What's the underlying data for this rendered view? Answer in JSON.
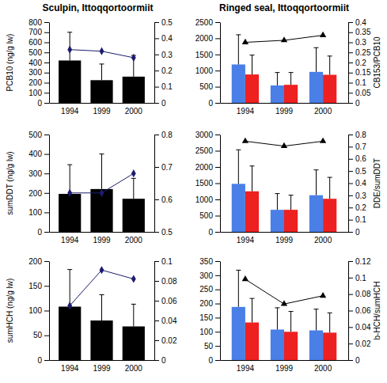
{
  "chart_data": [
    {
      "type": "bar",
      "title": "Sculpin, Ittoqqortoormiit",
      "y_label": "PCB10 (ng/g lw)",
      "categories": [
        "1994",
        "1999",
        "2000"
      ],
      "ylim": [
        0,
        800
      ],
      "yticks": [
        0,
        100,
        200,
        300,
        400,
        500,
        600,
        700,
        800
      ],
      "y2lim": [
        0,
        0.5
      ],
      "y2ticks": [
        0,
        0.1,
        0.2,
        0.3,
        0.4,
        0.5
      ],
      "series": [
        {
          "type": "bar",
          "color": "#000000",
          "values": [
            420,
            225,
            260
          ],
          "errors": [
            280,
            160,
            210
          ]
        },
        {
          "type": "line",
          "axis": "y2",
          "color": "#1c1c6e",
          "marker": "diamond",
          "values": [
            0.33,
            0.32,
            0.28
          ]
        }
      ]
    },
    {
      "type": "bar",
      "y_label": "sumDDT (ng/g lw)",
      "categories": [
        "1994",
        "1999",
        "2000"
      ],
      "ylim": [
        0,
        500
      ],
      "yticks": [
        0,
        100,
        200,
        300,
        400,
        500
      ],
      "y2lim": [
        0.5,
        0.8
      ],
      "y2ticks": [
        0.5,
        0.6,
        0.7,
        0.8
      ],
      "series": [
        {
          "type": "bar",
          "color": "#000000",
          "values": [
            195,
            220,
            170
          ],
          "errors": [
            150,
            180,
            105
          ]
        },
        {
          "type": "line",
          "axis": "y2",
          "color": "#1c1c6e",
          "marker": "diamond",
          "values": [
            0.62,
            0.62,
            0.68
          ]
        }
      ]
    },
    {
      "type": "bar",
      "y_label": "sumHCH (ng/g lw)",
      "categories": [
        "1994",
        "1999",
        "2000"
      ],
      "ylim": [
        0,
        200
      ],
      "yticks": [
        0,
        50,
        100,
        150,
        200
      ],
      "y2lim": [
        0,
        0.1
      ],
      "y2ticks": [
        0,
        0.02,
        0.04,
        0.06,
        0.08,
        0.1
      ],
      "series": [
        {
          "type": "bar",
          "color": "#000000",
          "values": [
            108,
            80,
            68
          ],
          "errors": [
            75,
            52,
            45
          ]
        },
        {
          "type": "line",
          "axis": "y2",
          "color": "#1c1c6e",
          "marker": "diamond",
          "values": [
            0.055,
            0.091,
            0.082
          ]
        }
      ]
    },
    {
      "type": "bar",
      "title": "Ringed seal, Ittoqqortoormiit",
      "y2_label": "CB153/PCB10",
      "categories": [
        "1994",
        "1999",
        "2000"
      ],
      "ylim": [
        0,
        2500
      ],
      "yticks": [
        0,
        500,
        1000,
        1500,
        2000,
        2500
      ],
      "y2lim": [
        0,
        0.4
      ],
      "y2ticks": [
        0,
        0.05,
        0.1,
        0.15,
        0.2,
        0.25,
        0.3,
        0.35,
        0.4
      ],
      "series": [
        {
          "type": "bar",
          "color": "#4a7fe8",
          "values": [
            1190,
            540,
            960
          ],
          "errors": [
            920,
            400,
            750
          ]
        },
        {
          "type": "bar",
          "color": "#ee2020",
          "values": [
            880,
            560,
            870
          ],
          "errors": [
            600,
            380,
            580
          ]
        },
        {
          "type": "line",
          "axis": "y2",
          "color": "#000000",
          "marker": "triangle",
          "values": [
            0.3,
            0.31,
            0.335
          ]
        }
      ]
    },
    {
      "type": "bar",
      "y2_label": "DDE/sumDDT",
      "categories": [
        "1994",
        "1999",
        "2000"
      ],
      "ylim": [
        0,
        3000
      ],
      "yticks": [
        0,
        500,
        1000,
        1500,
        2000,
        2500,
        3000
      ],
      "y2lim": [
        0,
        0.8
      ],
      "y2ticks": [
        0,
        0.1,
        0.2,
        0.3,
        0.4,
        0.5,
        0.6,
        0.7,
        0.8
      ],
      "series": [
        {
          "type": "bar",
          "color": "#4a7fe8",
          "values": [
            1480,
            680,
            1130
          ],
          "errors": [
            1050,
            500,
            780
          ]
        },
        {
          "type": "bar",
          "color": "#ee2020",
          "values": [
            1250,
            680,
            1020
          ],
          "errors": [
            780,
            450,
            660
          ]
        },
        {
          "type": "line",
          "axis": "y2",
          "color": "#000000",
          "marker": "triangle",
          "values": [
            0.745,
            0.705,
            0.745
          ]
        }
      ]
    },
    {
      "type": "bar",
      "y2_label": "b-HCH/sumHCH",
      "categories": [
        "1994",
        "1999",
        "2000"
      ],
      "ylim": [
        0,
        350
      ],
      "yticks": [
        0,
        50,
        100,
        150,
        200,
        250,
        300,
        350
      ],
      "y2lim": [
        0,
        0.12
      ],
      "y2ticks": [
        0,
        0.02,
        0.04,
        0.06,
        0.08,
        0.1,
        0.12
      ],
      "series": [
        {
          "type": "bar",
          "color": "#4a7fe8",
          "values": [
            188,
            108,
            105
          ],
          "errors": [
            130,
            77,
            75
          ]
        },
        {
          "type": "bar",
          "color": "#ee2020",
          "values": [
            133,
            100,
            97
          ],
          "errors": [
            85,
            72,
            70
          ]
        },
        {
          "type": "line",
          "axis": "y2",
          "color": "#000000",
          "marker": "triangle",
          "values": [
            0.098,
            0.068,
            0.078
          ]
        }
      ]
    }
  ]
}
